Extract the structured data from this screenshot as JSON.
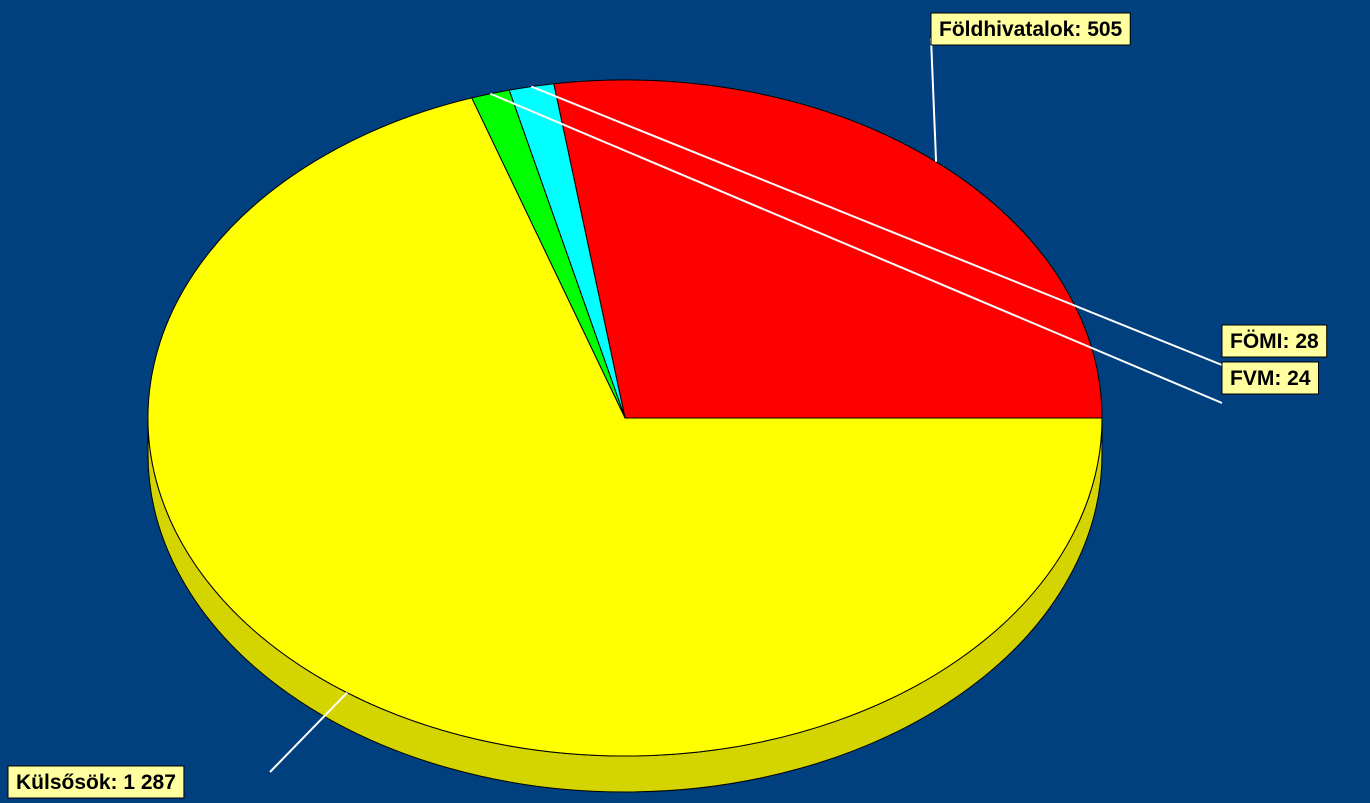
{
  "chart_data": {
    "type": "pie",
    "categories": [
      "Földhivatalok",
      "FÖMI",
      "FVM",
      "Külsősök"
    ],
    "values": [
      505,
      28,
      24,
      1287
    ],
    "value_labels": [
      "505",
      "28",
      "24",
      "1 287"
    ],
    "colors": [
      "#ff0000",
      "#00ffff",
      "#00ff00",
      "#ffff00"
    ]
  }
}
